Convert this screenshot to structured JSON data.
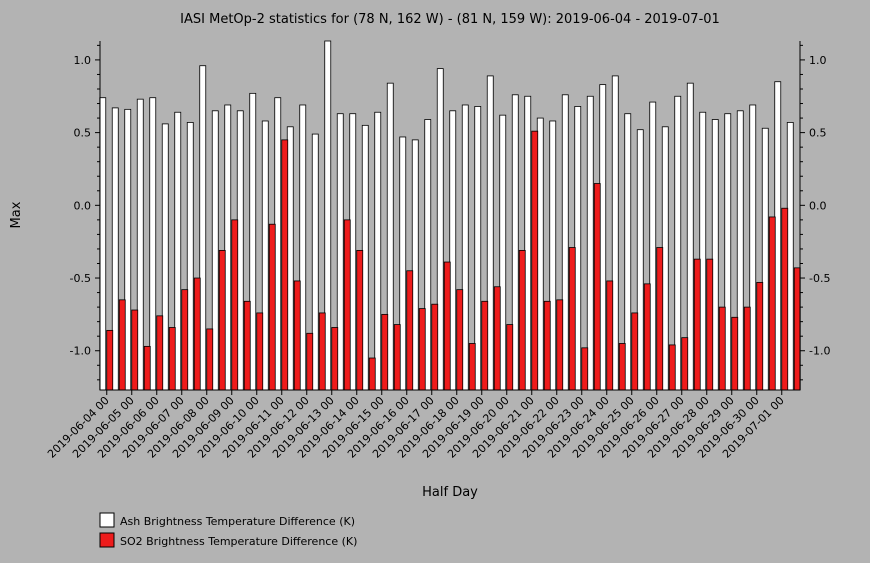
{
  "chart_data": {
    "type": "bar",
    "title": "IASI MetOp-2 statistics for (78 N, 162 W) - (81 N, 159 W): 2019-06-04 - 2019-07-01",
    "xlabel": "Half Day",
    "ylabel": "Max",
    "ylim": [
      -1.27,
      1.13
    ],
    "yticks": [
      1.0,
      0.5,
      0.0,
      -0.5,
      -1.0
    ],
    "ytick_labels": [
      "1.0",
      "0.5",
      "0.0",
      "-0.5",
      "-1.0"
    ],
    "grid": false,
    "legend_position": "bottom-left",
    "x_tick_labels": [
      "2019-06-04 00",
      "2019-06-05 00",
      "2019-06-06 00",
      "2019-06-07 00",
      "2019-06-08 00",
      "2019-06-09 00",
      "2019-06-10 00",
      "2019-06-11 00",
      "2019-06-12 00",
      "2019-06-13 00",
      "2019-06-14 00",
      "2019-06-15 00",
      "2019-06-16 00",
      "2019-06-17 00",
      "2019-06-18 00",
      "2019-06-19 00",
      "2019-06-20 00",
      "2019-06-21 00",
      "2019-06-22 00",
      "2019-06-23 00",
      "2019-06-24 00",
      "2019-06-25 00",
      "2019-06-26 00",
      "2019-06-27 00",
      "2019-06-28 00",
      "2019-06-29 00",
      "2019-06-30 00",
      "2019-07-01 00"
    ],
    "series": [
      {
        "name": "Ash Brightness Temperature Difference (K)",
        "color": "#ffffff",
        "values": [
          0.74,
          0.67,
          0.66,
          0.73,
          0.74,
          0.56,
          0.64,
          0.57,
          0.96,
          0.65,
          0.69,
          0.65,
          0.77,
          0.58,
          0.74,
          0.54,
          0.69,
          0.49,
          1.13,
          0.63,
          0.63,
          0.55,
          0.64,
          0.84,
          0.47,
          0.45,
          0.59,
          0.94,
          0.65,
          0.69,
          0.68,
          0.89,
          0.62,
          0.76,
          0.75,
          0.6,
          0.58,
          0.76,
          0.68,
          0.75,
          0.83,
          0.89,
          0.63,
          0.52,
          0.71,
          0.54,
          0.75,
          0.84,
          0.64,
          0.59,
          0.63,
          0.65,
          0.69,
          0.53,
          0.85,
          0.57
        ]
      },
      {
        "name": "SO2 Brightness Temperature Difference (K)",
        "color": "#ee1c1c",
        "values": [
          -0.86,
          -0.65,
          -0.72,
          -0.97,
          -0.76,
          -0.84,
          -0.58,
          -0.5,
          -0.85,
          -0.31,
          -0.1,
          -0.66,
          -0.74,
          -0.13,
          0.45,
          -0.52,
          -0.88,
          -0.74,
          -0.84,
          -0.1,
          -0.31,
          -1.05,
          -0.75,
          -0.82,
          -0.45,
          -0.71,
          -0.68,
          -0.39,
          -0.58,
          -0.95,
          -0.66,
          -0.56,
          -0.82,
          -0.31,
          0.51,
          -0.66,
          -0.65,
          -0.29,
          -0.98,
          0.15,
          -0.52,
          -0.95,
          -0.74,
          -0.54,
          -0.29,
          -0.96,
          -0.91,
          -0.37,
          -0.37,
          -0.7,
          -0.77,
          -0.7,
          -0.53,
          -0.08,
          -0.02,
          -0.43
        ]
      }
    ]
  }
}
